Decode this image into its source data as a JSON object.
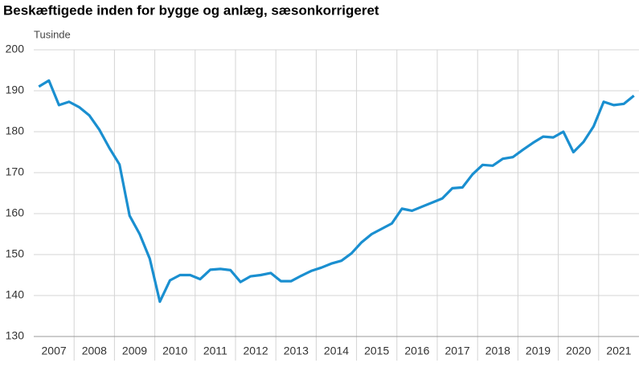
{
  "chart_data": {
    "type": "line",
    "title": "Beskæftigede inden for bygge og anlæg, sæsonkorrigeret",
    "y_label": "Tusinde",
    "categories": [
      null,
      "2007",
      null,
      null,
      null,
      "2008",
      null,
      null,
      null,
      "2009",
      null,
      null,
      null,
      "2010",
      null,
      null,
      null,
      "2011",
      null,
      null,
      null,
      "2012",
      null,
      null,
      null,
      "2013",
      null,
      null,
      null,
      "2014",
      null,
      null,
      null,
      "2015",
      null,
      null,
      null,
      "2016",
      null,
      null,
      null,
      "2017",
      null,
      null,
      null,
      "2018",
      null,
      null,
      null,
      "2019",
      null,
      null,
      null,
      "2020",
      null,
      null,
      null,
      "2021",
      null,
      null
    ],
    "values": [
      191,
      192.5,
      186.5,
      187.3,
      186,
      184,
      180.5,
      176,
      172,
      159.5,
      155,
      149,
      138.5,
      143.7,
      145,
      145,
      144,
      146.3,
      146.5,
      146.2,
      143.3,
      144.7,
      145,
      145.5,
      143.5,
      143.5,
      144.8,
      146,
      146.8,
      147.8,
      148.5,
      150.3,
      153,
      155,
      156.3,
      157.6,
      161.2,
      160.7,
      161.7,
      162.7,
      163.7,
      166.2,
      166.4,
      169.6,
      171.9,
      171.7,
      173.4,
      173.8,
      175.6,
      177.3,
      178.8,
      178.6,
      180,
      175,
      177.5,
      181.3,
      187.3,
      186.5,
      186.8,
      188.8
    ],
    "color": "#1a8fd0",
    "ylim": [
      130,
      200
    ],
    "yticks": [
      130,
      140,
      150,
      160,
      170,
      180,
      190,
      200
    ],
    "grid": true
  }
}
